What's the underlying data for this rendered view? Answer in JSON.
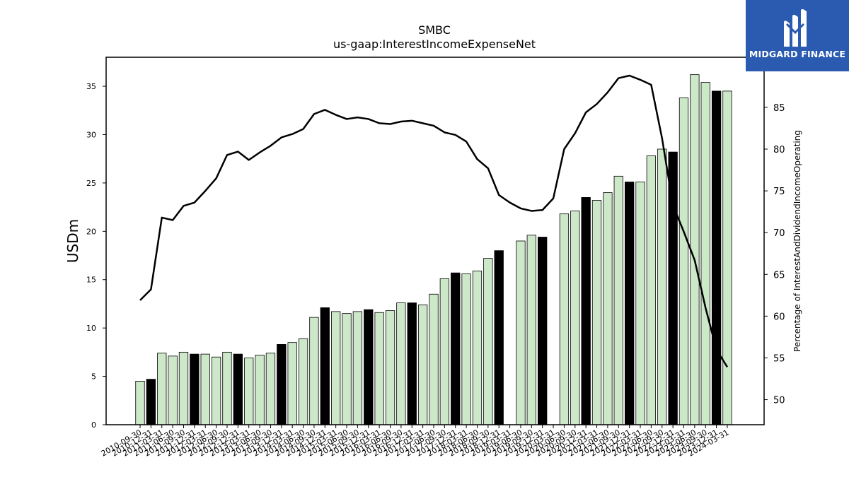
{
  "brand": {
    "name": "MIDGARD FINANCE",
    "logo_icon": "midgard-finance-logo-icon",
    "color": "#2a5bb0"
  },
  "chart_data": {
    "type": "bar+line",
    "title": "SMBC",
    "subtitle": "us-gaap:InterestIncomeExpenseNet",
    "ylabel": "USDm",
    "y2label": "Percentage of InterestAndDividendIncomeOperating",
    "ylim": [
      0,
      38
    ],
    "y2lim": [
      47,
      91
    ],
    "yticks": [
      0,
      5,
      10,
      15,
      20,
      25,
      30,
      35
    ],
    "y2ticks": [
      50,
      55,
      60,
      65,
      70,
      75,
      80,
      85
    ],
    "colors": {
      "bar": "#cce8c8",
      "bar_highlight": "#000000",
      "line": "#000000"
    },
    "categories": [
      "2010-09-30",
      "2010-12-31",
      "2011-03-31",
      "2011-06-30",
      "2011-09-30",
      "2011-12-31",
      "2012-03-31",
      "2012-06-30",
      "2012-09-30",
      "2012-12-31",
      "2013-03-31",
      "2013-06-30",
      "2013-09-30",
      "2013-12-31",
      "2014-03-31",
      "2014-06-30",
      "2014-09-30",
      "2014-12-31",
      "2015-03-31",
      "2015-06-30",
      "2015-09-30",
      "2015-12-31",
      "2016-03-31",
      "2016-06-30",
      "2016-09-30",
      "2016-12-31",
      "2017-03-31",
      "2017-06-30",
      "2017-09-30",
      "2017-12-31",
      "2018-03-31",
      "2018-06-30",
      "2018-09-30",
      "2018-12-31",
      "2019-03-31",
      "2019-06-30",
      "2019-09-30",
      "2019-12-31",
      "2020-03-31",
      "2020-06-30",
      "2020-09-30",
      "2020-12-31",
      "2021-03-31",
      "2021-06-30",
      "2021-09-30",
      "2021-12-31",
      "2022-03-31",
      "2022-06-30",
      "2022-09-30",
      "2022-12-31",
      "2023-03-31",
      "2023-06-30",
      "2023-09-30",
      "2023-12-31",
      "2024-03-31"
    ],
    "x_tick_labels": [
      "2010-09-30",
      "2010-12-31",
      "2011-03-31",
      "2011-06-30",
      "2011-09-30",
      "2011-12-31",
      "2012-03-31",
      "2012-06-30",
      "2012-09-30",
      "2012-12-31",
      "2013-03-31",
      "2013-06-30",
      "2013-09-30",
      "2013-12-31",
      "2014-03-31",
      "2014-06-30",
      "2014-09-30",
      "2014-12-31",
      "2015-03-31",
      "2015-06-30",
      "2015-09-30",
      "2015-12-31",
      "2016-03-31",
      "2016-06-30",
      "2016-09-30",
      "2016-12-31",
      "2017-03-31",
      "2017-06-30",
      "2017-09-30",
      "2017-12-31",
      "2018-03-31",
      "2018-06-30",
      "2018-09-30",
      "2018-12-31",
      "2019-03-31",
      "2019-06-30",
      "2019-09-30",
      "2019-12-31",
      "2020-03-31",
      "2020-06-30",
      "2020-09-30",
      "2020-12-31",
      "2021-03-31",
      "2021-06-30",
      "2021-09-30",
      "2021-12-31",
      "2022-03-31",
      "2022-06-30",
      "2022-09-30",
      "2022-12-31",
      "2023-03-31",
      "2023-06-30",
      "2023-09-30",
      "2023-12-31",
      "2024-03-31"
    ],
    "bar_values": [
      4.5,
      4.7,
      7.4,
      7.1,
      7.5,
      7.3,
      7.3,
      7.0,
      7.5,
      7.3,
      6.9,
      7.2,
      7.4,
      8.3,
      8.5,
      8.9,
      11.1,
      12.1,
      11.7,
      11.5,
      11.7,
      11.9,
      11.6,
      11.8,
      12.6,
      12.6,
      12.4,
      13.5,
      15.1,
      15.7,
      15.6,
      15.9,
      17.2,
      18.0,
      null,
      19.0,
      19.6,
      19.4,
      null,
      21.8,
      22.1,
      23.5,
      23.2,
      24.0,
      25.7,
      25.1,
      25.1,
      27.8,
      28.5,
      28.2,
      33.8,
      36.2,
      35.4,
      34.5,
      34.5
    ],
    "bar_highlight": [
      false,
      true,
      false,
      false,
      false,
      true,
      false,
      false,
      false,
      true,
      false,
      false,
      false,
      true,
      false,
      false,
      false,
      true,
      false,
      false,
      false,
      true,
      false,
      false,
      false,
      true,
      false,
      false,
      false,
      true,
      false,
      false,
      false,
      true,
      false,
      false,
      false,
      true,
      false,
      false,
      false,
      true,
      false,
      false,
      false,
      true,
      false,
      false,
      false,
      true,
      false,
      false,
      false,
      true,
      false
    ],
    "line_values": [
      61.9,
      63.2,
      71.8,
      71.5,
      73.2,
      73.6,
      75.0,
      76.5,
      79.3,
      79.7,
      78.7,
      79.6,
      80.4,
      81.4,
      81.8,
      82.4,
      84.2,
      84.7,
      84.1,
      83.6,
      83.8,
      83.6,
      83.1,
      83.0,
      83.3,
      83.4,
      83.1,
      82.8,
      82.0,
      81.7,
      80.9,
      78.8,
      77.7,
      74.5,
      73.6,
      72.9,
      72.6,
      72.7,
      74.1,
      80.0,
      81.9,
      84.4,
      85.4,
      86.8,
      88.5,
      88.8,
      88.3,
      87.7,
      81.3,
      73.3,
      70.1,
      66.7,
      61.0,
      56.0,
      53.9
    ]
  }
}
